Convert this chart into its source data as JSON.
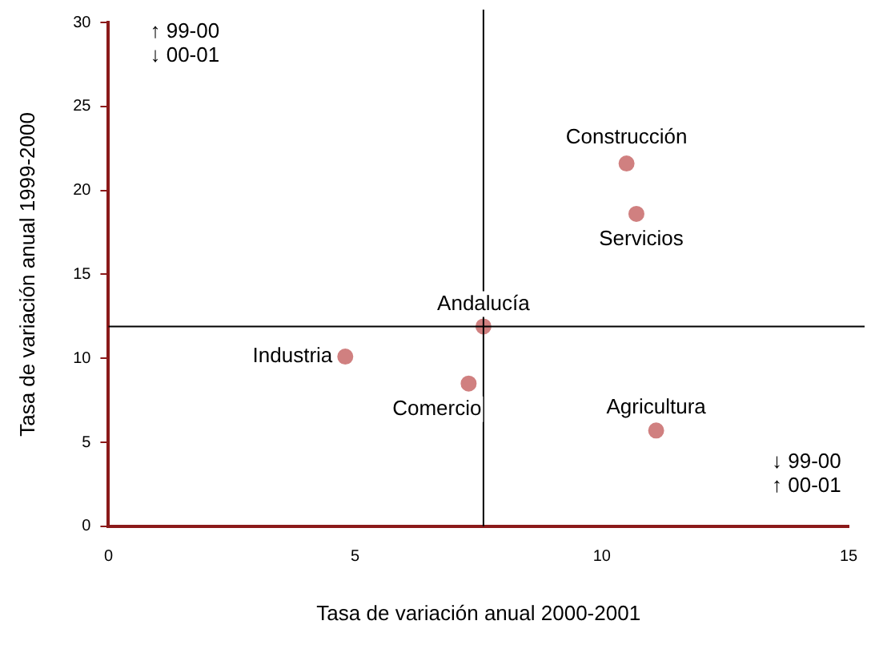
{
  "chart_data": {
    "type": "scatter",
    "xlabel": "Tasa de variación anual 2000-2001",
    "ylabel": "Tasa de variación anual 1999-2000",
    "xlim": [
      0,
      15
    ],
    "xticks": [
      0,
      5,
      10,
      15
    ],
    "ylim": [
      0,
      30
    ],
    "yticks": [
      0,
      5,
      10,
      15,
      20,
      25,
      30
    ],
    "grid": false,
    "legend": false,
    "marker": "circle",
    "series": [
      {
        "name": "Construcción",
        "color": "#d08080",
        "x": [
          10.5
        ],
        "values": [
          21.6
        ]
      },
      {
        "name": "Servicios",
        "color": "#d08080",
        "x": [
          10.7
        ],
        "values": [
          18.6
        ]
      },
      {
        "name": "Andalucía",
        "color": "#d08080",
        "x": [
          7.6
        ],
        "values": [
          11.9
        ]
      },
      {
        "name": "Industria",
        "color": "#d08080",
        "x": [
          4.8
        ],
        "values": [
          10.1
        ]
      },
      {
        "name": "Comercio",
        "color": "#d08080",
        "x": [
          7.3
        ],
        "values": [
          8.5
        ]
      },
      {
        "name": "Agricultura",
        "color": "#d08080",
        "x": [
          11.1
        ],
        "values": [
          5.7
        ]
      }
    ],
    "ref_lines": [
      {
        "axis": "x",
        "value": 7.6,
        "color": "#000000"
      },
      {
        "axis": "y",
        "value": 11.9,
        "color": "#000000"
      }
    ],
    "annotations": [
      "↑ 99-00\n↓ 00-01",
      "↓ 99-00\n↑ 00-01"
    ]
  }
}
